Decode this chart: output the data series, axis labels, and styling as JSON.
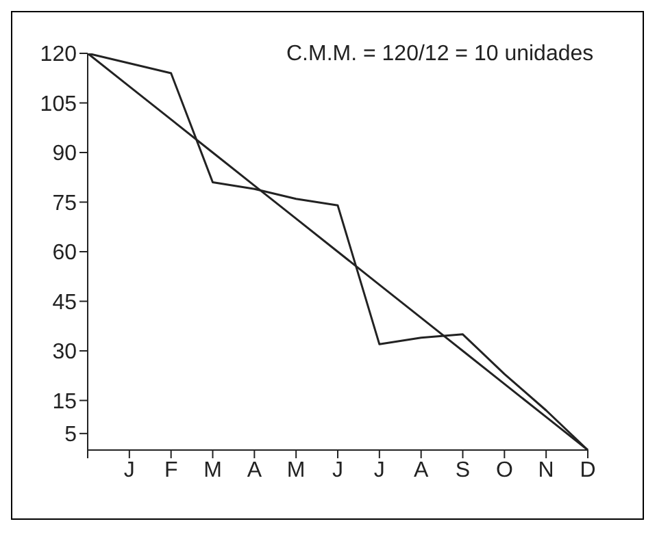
{
  "chart_data": {
    "type": "line",
    "annotations": [
      "C.M.M. = 120/12 = 10 unidades"
    ],
    "categories": [
      null,
      "J",
      "F",
      "M",
      "A",
      "M",
      "J",
      "J",
      "A",
      "S",
      "O",
      "N",
      "D"
    ],
    "series": [
      {
        "color": "#222222",
        "values": [
          120,
          117,
          114,
          81,
          79,
          76,
          74,
          32,
          34,
          35,
          23,
          12,
          0
        ]
      },
      {
        "color": "#222222",
        "values": [
          120,
          110,
          100,
          90,
          80,
          70,
          60,
          50,
          40,
          30,
          20,
          10,
          0
        ]
      }
    ],
    "ylim": [
      0,
      120
    ],
    "yticks": [
      5,
      15,
      30,
      45,
      60,
      75,
      90,
      105,
      120
    ],
    "grid": false,
    "legend": false,
    "marker": "none",
    "line_style": "solid"
  }
}
